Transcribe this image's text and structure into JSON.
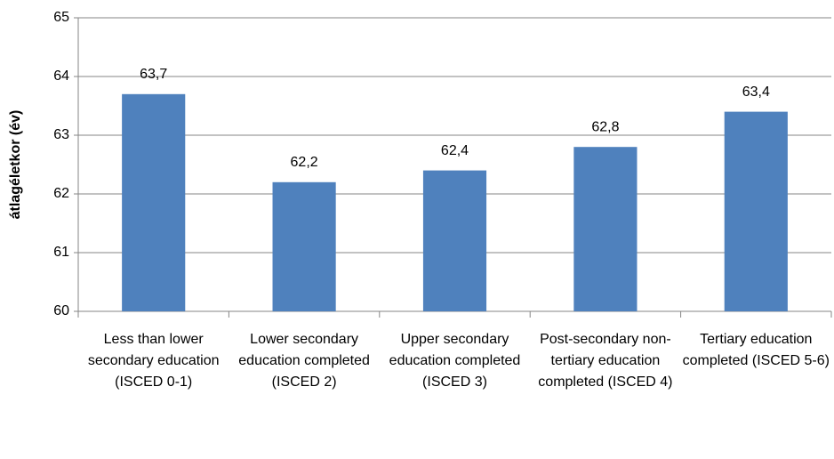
{
  "chart_data": {
    "type": "bar",
    "y_label": "átlagéletkor (év)",
    "categories": [
      "Less than lower secondary education (ISCED 0-1)",
      "Lower secondary education completed (ISCED 2)",
      "Upper secondary education completed (ISCED 3)",
      "Post-secondary non-tertiary education completed (ISCED 4)",
      "Tertiary education completed (ISCED 5-6)"
    ],
    "values": [
      63.7,
      62.2,
      62.4,
      62.8,
      63.4
    ],
    "value_labels": [
      "63,7",
      "62,2",
      "62,4",
      "62,8",
      "63,4"
    ],
    "color": "#4f81bd",
    "ylim": [
      60,
      65
    ],
    "yticks": [
      60,
      61,
      62,
      63,
      64,
      65
    ],
    "grid": true
  }
}
